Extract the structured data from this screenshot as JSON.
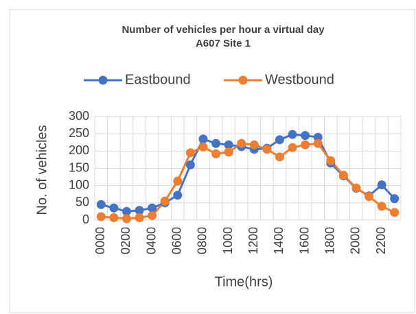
{
  "chart_data": {
    "type": "line",
    "title": "Number of vehicles per hour a virtual day",
    "subtitle": "A607 Site 1",
    "x_label": "Time(hrs)",
    "y_label": "No. of vehicles",
    "categories": [
      "0000",
      null,
      "0200",
      null,
      "0400",
      null,
      "0600",
      null,
      "0800",
      null,
      "1000",
      null,
      "1200",
      null,
      "1400",
      null,
      "1600",
      null,
      "1800",
      null,
      "2000",
      null,
      "2200",
      null
    ],
    "series": [
      {
        "name": "Eastbound",
        "color": "#4472c4",
        "values": [
          45,
          35,
          25,
          28,
          35,
          50,
          72,
          160,
          235,
          222,
          218,
          213,
          205,
          208,
          233,
          248,
          245,
          240,
          165,
          128,
          92,
          70,
          102,
          62
        ]
      },
      {
        "name": "Westbound",
        "color": "#ed7d31",
        "values": [
          10,
          7,
          4,
          7,
          13,
          55,
          113,
          195,
          212,
          192,
          197,
          222,
          218,
          205,
          183,
          210,
          218,
          222,
          172,
          130,
          93,
          68,
          40,
          22
        ]
      }
    ],
    "ylim": [
      0,
      300
    ],
    "yticks": [
      0,
      50,
      100,
      150,
      200,
      250,
      300
    ],
    "grid": true,
    "legend": "top"
  }
}
